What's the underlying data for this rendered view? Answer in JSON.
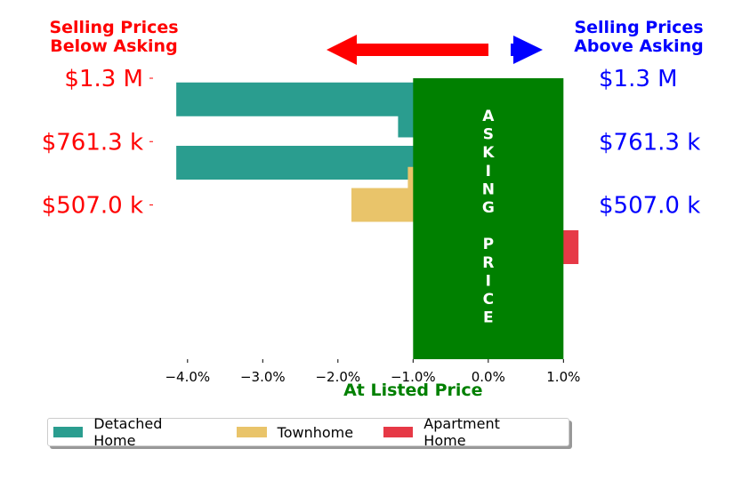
{
  "chart_data": {
    "type": "bar",
    "orientation": "horizontal",
    "header_left": [
      "Selling Prices",
      "Below Asking"
    ],
    "header_right": [
      "Selling Prices",
      "Above Asking"
    ],
    "x_label": "At Listed Price",
    "x_ticks": [
      -4.0,
      -3.0,
      -2.0,
      -1.0,
      0.0,
      1.0
    ],
    "x_tick_labels": [
      "−4.0%",
      "−3.0%",
      "−2.0%",
      "−1.0%",
      "0.0%",
      "1.0%"
    ],
    "xlim": [
      -4.4,
      1.15
    ],
    "price_groups": [
      {
        "label_left": "$1.3 M",
        "label_right": "$1.3 M"
      },
      {
        "label_left": "$761.3 k",
        "label_right": "$761.3 k"
      },
      {
        "label_left": "$507.0 k",
        "label_right": "$507.0 k"
      }
    ],
    "bars": [
      {
        "row": 0.5,
        "series": "Detached Home",
        "value": -4.15
      },
      {
        "row": 1.0,
        "series": "Detached Home",
        "value": -1.2
      },
      {
        "row": 2.0,
        "series": "Detached Home",
        "value": -4.15
      },
      {
        "row": 2.5,
        "series": "Townhome",
        "value": -1.07
      },
      {
        "row": 3.0,
        "series": "Townhome",
        "value": -1.82
      },
      {
        "row": 4.0,
        "series": "Apartment Home",
        "value": 1.2
      }
    ],
    "asking_box": {
      "x_from": -1.0,
      "x_to": 1.0,
      "text": "ASKING PRICE"
    },
    "series": [
      {
        "name": "Detached Home",
        "color": "#2a9d8f"
      },
      {
        "name": "Townhome",
        "color": "#e9c46a"
      },
      {
        "name": "Apartment Home",
        "color": "#e63946"
      }
    ],
    "colors": {
      "below": "#ff0000",
      "above": "#0000ff",
      "asking": "#008000"
    }
  }
}
